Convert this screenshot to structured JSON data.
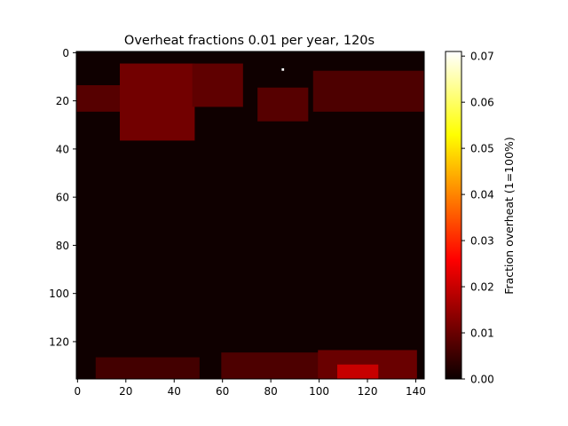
{
  "chart_data": {
    "type": "heatmap",
    "title": "Overheat fractions 0.01 per year, 120s",
    "xlabel": "",
    "ylabel": "",
    "x_ticks": [
      0,
      20,
      40,
      60,
      80,
      100,
      120,
      140
    ],
    "y_ticks": [
      0,
      20,
      40,
      60,
      80,
      100,
      120
    ],
    "xlim": [
      -0.5,
      143.5
    ],
    "ylim": [
      135.5,
      -0.5
    ],
    "grid": false,
    "grid_shape": [
      136,
      144
    ],
    "colormap": "hot",
    "colorbar": {
      "label": "Fraction overheat (1=100%)",
      "range": [
        0.0,
        0.071
      ],
      "ticks": [
        0.0,
        0.01,
        0.02,
        0.03,
        0.04,
        0.05,
        0.06,
        0.07
      ],
      "tick_labels": [
        "0.00",
        "0.01",
        "0.02",
        "0.03",
        "0.04",
        "0.05",
        "0.06",
        "0.07"
      ]
    },
    "background_value": 0.0005,
    "regions": [
      {
        "name": "northern-land-west",
        "rows": [
          14,
          24
        ],
        "cols": [
          0,
          18
        ],
        "value": 0.008
      },
      {
        "name": "northern-land-central",
        "rows": [
          5,
          36
        ],
        "cols": [
          18,
          48
        ],
        "value": 0.011
      },
      {
        "name": "northern-land-east",
        "rows": [
          5,
          22
        ],
        "cols": [
          48,
          68
        ],
        "value": 0.009
      },
      {
        "name": "northern-land-mid",
        "rows": [
          15,
          28
        ],
        "cols": [
          75,
          95
        ],
        "value": 0.008
      },
      {
        "name": "northern-land-far-east",
        "rows": [
          8,
          24
        ],
        "cols": [
          98,
          143
        ],
        "value": 0.007
      },
      {
        "name": "southern-land-west",
        "rows": [
          127,
          135
        ],
        "cols": [
          8,
          50
        ],
        "value": 0.006
      },
      {
        "name": "southern-land-central",
        "rows": [
          125,
          135
        ],
        "cols": [
          60,
          100
        ],
        "value": 0.007
      },
      {
        "name": "southern-land-east",
        "rows": [
          124,
          135
        ],
        "cols": [
          100,
          140
        ],
        "value": 0.01
      },
      {
        "name": "southern-hotspot",
        "rows": [
          130,
          135
        ],
        "cols": [
          108,
          124
        ],
        "value": 0.02
      }
    ],
    "peak_point": {
      "row": 7,
      "col": 85,
      "value": 0.071
    }
  }
}
